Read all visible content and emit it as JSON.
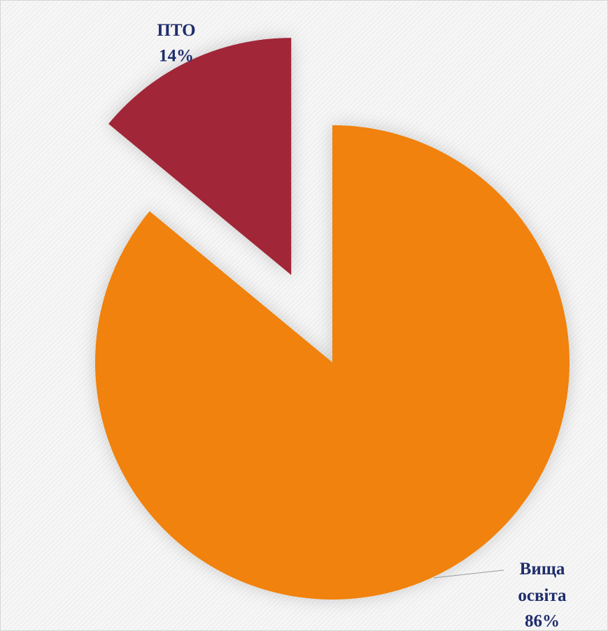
{
  "chart_data": {
    "type": "pie",
    "categories": [
      "Вища освіта",
      "ПТО"
    ],
    "values": [
      86,
      14
    ],
    "value_labels": [
      "86%",
      "14%"
    ],
    "colors": [
      "#f0820a",
      "#a02837"
    ]
  }
}
